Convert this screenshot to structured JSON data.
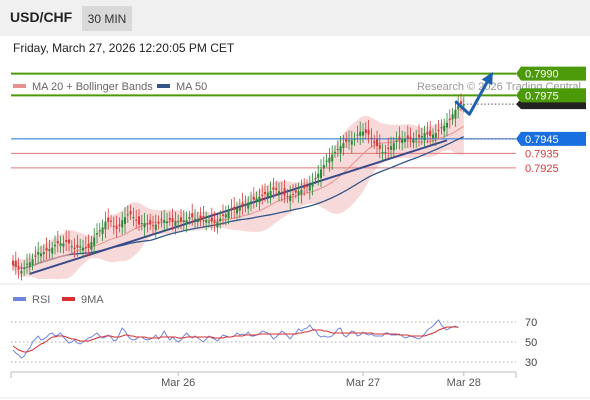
{
  "header": {
    "symbol": "USD/CHF",
    "timeframe": "30 MIN"
  },
  "datetime": "Friday, March 27, 2026 12:20:05 PM CET",
  "colors": {
    "bull": "#2a8a3a",
    "bear": "#d83a3a",
    "ma20": "#e89090",
    "ma50": "#34568a",
    "trend": "#3a4a8a",
    "resistance": "#4c9a0a",
    "support_blue": "#1a6fe0",
    "support_red": "#e07878",
    "band": "#f6cccc",
    "arrow": "#2060b0",
    "rsi": "#6f86e0",
    "rsi_ma": "#d83030"
  },
  "chart_data": [
    {
      "type": "candlestick",
      "title": "USD/CHF",
      "timeframe": "30 MIN",
      "legend": [
        {
          "name": "MA 20 + Bollinger Bands",
          "color": "#e89090"
        },
        {
          "name": "MA 50",
          "color": "#34568a"
        }
      ],
      "source": "Research © 2026 Trading Central",
      "x_tick_labels": [
        {
          "label": "Mar 26",
          "index": 59
        },
        {
          "label": "Mar 27",
          "index": 125
        },
        {
          "label": "Mar 28",
          "index": 161
        }
      ],
      "y_range": [
        0.7845,
        0.7998
      ],
      "levels": [
        {
          "label": "0.7990",
          "value": 0.799,
          "kind": "resistance"
        },
        {
          "label": "0.7975",
          "value": 0.7975,
          "kind": "resistance"
        },
        {
          "label": "0.7945",
          "value": 0.7945,
          "kind": "pivot"
        },
        {
          "label": "0.7935",
          "value": 0.7935,
          "kind": "support"
        },
        {
          "label": "0.7925",
          "value": 0.7925,
          "kind": "support"
        }
      ],
      "last_price": 0.7969,
      "trendline": [
        {
          "index": 6,
          "value": 0.7852
        },
        {
          "index": 155,
          "value": 0.7944
        }
      ],
      "scenario_arrow": [
        {
          "index": 158,
          "value": 0.7971
        },
        {
          "index": 163,
          "value": 0.7962
        },
        {
          "index": 171,
          "value": 0.799
        }
      ],
      "candle_count": 160,
      "close": [
        0.7858,
        0.7857,
        0.7855,
        0.7854,
        0.7856,
        0.7859,
        0.786,
        0.7862,
        0.7864,
        0.7867,
        0.7866,
        0.7867,
        0.7868,
        0.7869,
        0.787,
        0.7872,
        0.7873,
        0.7873,
        0.7873,
        0.7874,
        0.7873,
        0.7871,
        0.7869,
        0.787,
        0.7871,
        0.787,
        0.787,
        0.787,
        0.7874,
        0.7877,
        0.788,
        0.7882,
        0.7884,
        0.7888,
        0.7888,
        0.7888,
        0.7885,
        0.7883,
        0.7885,
        0.7889,
        0.7891,
        0.7893,
        0.7893,
        0.7891,
        0.7889,
        0.7886,
        0.7887,
        0.7887,
        0.7886,
        0.7886,
        0.7885,
        0.7886,
        0.7887,
        0.7889,
        0.7889,
        0.7888,
        0.7889,
        0.7888,
        0.7888,
        0.7888,
        0.7888,
        0.7889,
        0.7889,
        0.7891,
        0.7891,
        0.789,
        0.789,
        0.789,
        0.789,
        0.7889,
        0.7888,
        0.7888,
        0.7887,
        0.7888,
        0.789,
        0.7892,
        0.7893,
        0.7895,
        0.7896,
        0.7896,
        0.7897,
        0.7898,
        0.7899,
        0.79,
        0.7901,
        0.7902,
        0.7903,
        0.7904,
        0.7905,
        0.7906,
        0.7907,
        0.7908,
        0.7909,
        0.791,
        0.791,
        0.7909,
        0.7908,
        0.7906,
        0.7905,
        0.7906,
        0.7907,
        0.7908,
        0.7909,
        0.791,
        0.7911,
        0.7912,
        0.7913,
        0.7915,
        0.7918,
        0.7921,
        0.7924,
        0.7927,
        0.793,
        0.7932,
        0.7934,
        0.7936,
        0.7938,
        0.794,
        0.7942,
        0.7943,
        0.7944,
        0.7944,
        0.7945,
        0.7948,
        0.795,
        0.795,
        0.7949,
        0.7948,
        0.7945,
        0.7942,
        0.794,
        0.7938,
        0.7936,
        0.7936,
        0.7938,
        0.794,
        0.7942,
        0.7944,
        0.7944,
        0.7945,
        0.7945,
        0.7945,
        0.7945,
        0.7945,
        0.7945,
        0.7946,
        0.7947,
        0.7949,
        0.7948,
        0.7947,
        0.7948,
        0.7949,
        0.7951,
        0.7953,
        0.7954,
        0.7956,
        0.7958,
        0.7962,
        0.7965,
        0.7968,
        0.7969,
        0.7969
      ],
      "rsi": {
        "levels": [
          70,
          50,
          30
        ],
        "legend": [
          {
            "name": "RSI",
            "color": "#6f86e0"
          },
          {
            "name": "9MA",
            "color": "#d83030"
          }
        ],
        "rsi_values": [
          42,
          39,
          37,
          34,
          36,
          41,
          44,
          50,
          53,
          56,
          52,
          53,
          55,
          58,
          59,
          56,
          57,
          59,
          55,
          52,
          49,
          50,
          52,
          49,
          48,
          50,
          52,
          54,
          55,
          57,
          59,
          56,
          54,
          55,
          57,
          55,
          51,
          52,
          58,
          64,
          61,
          56,
          53,
          52,
          53,
          55,
          55,
          53,
          52,
          53,
          54,
          57,
          53,
          56,
          61,
          56,
          52,
          55,
          52,
          50,
          52,
          56,
          59,
          56,
          54,
          56,
          54,
          52,
          50,
          53,
          56,
          54,
          53,
          51,
          54,
          57,
          56,
          55,
          55,
          56,
          59,
          57,
          58,
          57,
          60,
          56,
          56,
          57,
          58,
          61,
          60,
          59,
          57,
          53,
          55,
          58,
          61,
          59,
          56,
          53,
          57,
          59,
          63,
          61,
          63,
          64,
          67,
          63,
          62,
          57,
          55,
          56,
          55,
          55,
          56,
          59,
          63,
          64,
          57,
          55,
          58,
          61,
          60,
          56,
          57,
          60,
          58,
          57,
          58,
          56,
          56,
          56,
          56,
          59,
          59,
          57,
          57,
          57,
          58,
          56,
          54,
          55,
          56,
          55,
          54,
          53,
          55,
          58,
          62,
          64,
          66,
          69,
          72,
          67,
          64,
          62,
          64,
          65,
          66,
          64
        ],
        "ma9_values": [
          46,
          44,
          42,
          41,
          40,
          40,
          41,
          42,
          44,
          46,
          48,
          49,
          51,
          53,
          55,
          55,
          56,
          56,
          56,
          55,
          54,
          53,
          53,
          52,
          51,
          51,
          51,
          51,
          52,
          53,
          54,
          55,
          55,
          56,
          56,
          56,
          55,
          55,
          55,
          56,
          57,
          57,
          56,
          56,
          55,
          55,
          55,
          55,
          54,
          54,
          54,
          54,
          54,
          55,
          55,
          55,
          55,
          55,
          55,
          54,
          54,
          54,
          55,
          55,
          55,
          55,
          55,
          55,
          55,
          55,
          55,
          55,
          54,
          54,
          54,
          54,
          55,
          55,
          55,
          56,
          56,
          56,
          56,
          57,
          57,
          57,
          57,
          57,
          58,
          58,
          58,
          58,
          58,
          58,
          58,
          58,
          58,
          58,
          58,
          58,
          58,
          58,
          59,
          59,
          60,
          60,
          61,
          62,
          62,
          62,
          62,
          61,
          61,
          60,
          59,
          59,
          59,
          59,
          59,
          59,
          59,
          59,
          59,
          59,
          59,
          59,
          59,
          59,
          59,
          58,
          58,
          58,
          58,
          58,
          58,
          58,
          58,
          58,
          57,
          57,
          57,
          57,
          56,
          56,
          56,
          56,
          56,
          56,
          57,
          58,
          59,
          60,
          62,
          63,
          64,
          65,
          65,
          65,
          65,
          65
        ]
      }
    }
  ]
}
